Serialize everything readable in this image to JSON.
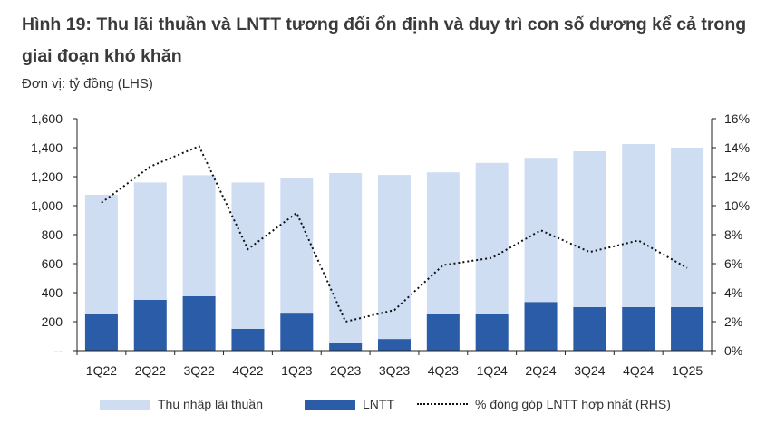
{
  "title": "Hình 19: Thu lãi thuần và LNTT tương đối ổn định và duy trì con số dương kể cả trong giai đoạn khó khăn",
  "unit_label": "Đơn vị: tỷ đồng (LHS)",
  "chart_data": {
    "type": "bar",
    "categories": [
      "1Q22",
      "2Q22",
      "3Q22",
      "4Q22",
      "1Q23",
      "2Q23",
      "3Q23",
      "4Q23",
      "1Q24",
      "2Q24",
      "3Q24",
      "4Q24",
      "1Q25"
    ],
    "series": [
      {
        "name": "Thu nhập lãi thuần",
        "type": "bar",
        "axis": "left",
        "color": "#cfddf2",
        "values": [
          1075,
          1160,
          1210,
          1160,
          1190,
          1225,
          1212,
          1230,
          1295,
          1330,
          1375,
          1425,
          1400
        ]
      },
      {
        "name": "LNTT",
        "type": "bar",
        "axis": "left",
        "color": "#2b5ca8",
        "values": [
          250,
          350,
          375,
          150,
          255,
          50,
          80,
          250,
          250,
          335,
          300,
          300,
          300
        ]
      },
      {
        "name": "% đóng góp LNTT hợp nhất (RHS)",
        "type": "line",
        "axis": "right",
        "color": "#111111",
        "values": [
          10.2,
          12.7,
          14.1,
          7.0,
          9.5,
          2.0,
          2.8,
          5.9,
          6.4,
          8.3,
          6.8,
          7.6,
          5.7
        ]
      }
    ],
    "ylim_left": [
      0,
      1600
    ],
    "ylim_right": [
      0,
      16
    ],
    "left_ticks": [
      "--",
      "200",
      "400",
      "600",
      "800",
      "1,000",
      "1,200",
      "1,400",
      "1,600"
    ],
    "right_ticks": [
      "0%",
      "2%",
      "4%",
      "6%",
      "8%",
      "10%",
      "12%",
      "14%",
      "16%"
    ],
    "legend_position": "bottom",
    "grid": false
  }
}
